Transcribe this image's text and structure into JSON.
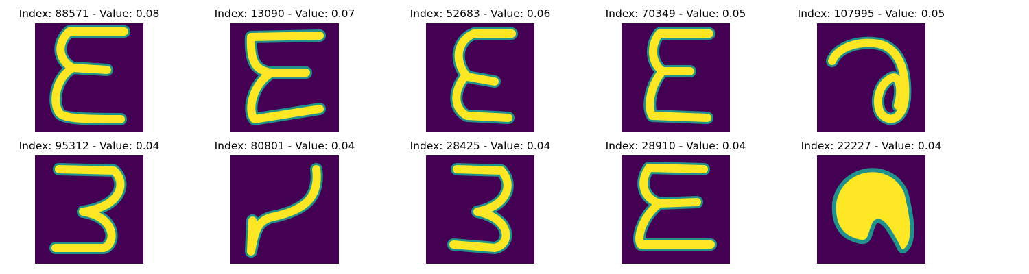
{
  "panels": [
    {
      "label": "Index: 88571 - Value: 0.08",
      "glyph": "epsilon-a"
    },
    {
      "label": "Index: 13090 - Value: 0.07",
      "glyph": "epsilon-b"
    },
    {
      "label": "Index: 52683 - Value: 0.06",
      "glyph": "epsilon-c"
    },
    {
      "label": "Index: 70349 - Value: 0.05",
      "glyph": "epsilon-d"
    },
    {
      "label": "Index: 107995 - Value: 0.05",
      "glyph": "loop-a"
    },
    {
      "label": "Index: 95312 - Value: 0.04",
      "glyph": "three-a"
    },
    {
      "label": "Index: 80801 - Value: 0.04",
      "glyph": "hook-a"
    },
    {
      "label": "Index: 28425 - Value: 0.04",
      "glyph": "three-b"
    },
    {
      "label": "Index: 28910 - Value: 0.04",
      "glyph": "epsilon-e"
    },
    {
      "label": "Index: 22227 - Value: 0.04",
      "glyph": "blob-a"
    }
  ],
  "colors": {
    "background": "#440154",
    "stroke": "#fde725",
    "edge": "#21918c"
  }
}
